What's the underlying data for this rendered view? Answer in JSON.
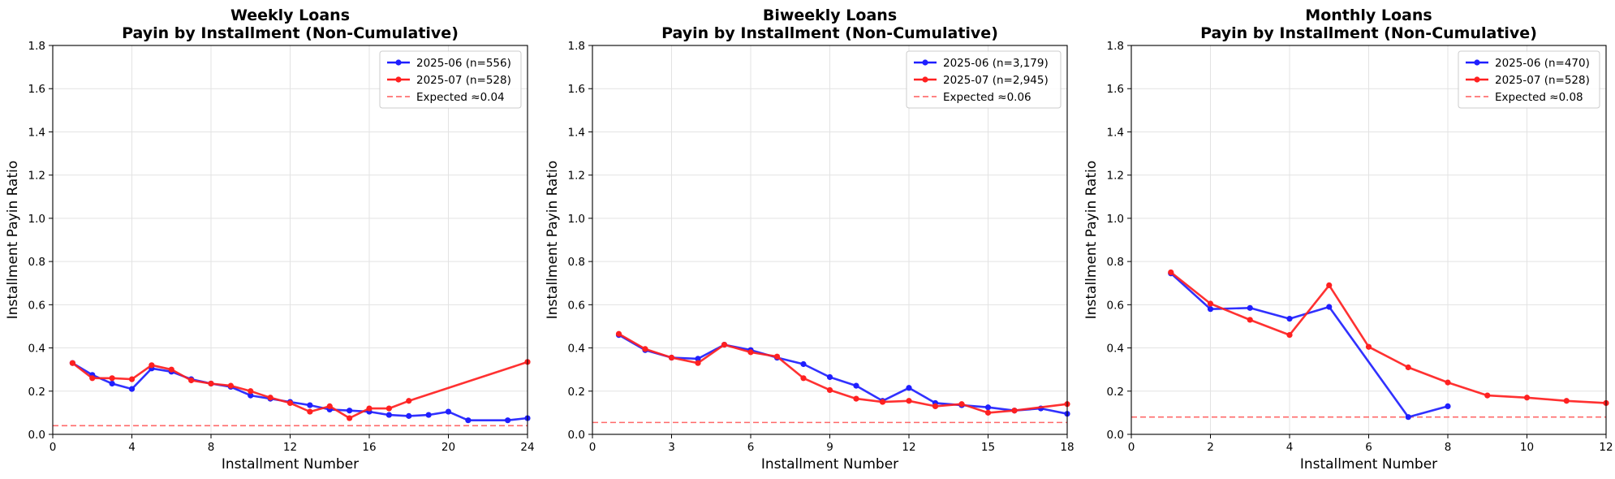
{
  "chart_data": [
    {
      "type": "line",
      "title": "Weekly Loans",
      "subtitle": "Payin by Installment (Non-Cumulative)",
      "xlabel": "Installment Number",
      "ylabel": "Installment Payin Ratio",
      "xlim": [
        0,
        24
      ],
      "ylim": [
        0,
        1.8
      ],
      "xticks": [
        "0",
        "4",
        "8",
        "12",
        "16",
        "20",
        "24"
      ],
      "yticks": [
        "0.0",
        "0.2",
        "0.4",
        "0.6",
        "0.8",
        "1.0",
        "1.2",
        "1.4",
        "1.6",
        "1.8"
      ],
      "grid": true,
      "legend_position": "top-right",
      "series": [
        {
          "name": "2025-06 (n=556)",
          "color": "#1f1fff",
          "x": [
            1,
            2,
            3,
            4,
            5,
            6,
            7,
            8,
            9,
            10,
            11,
            12,
            13,
            14,
            15,
            16,
            17,
            18,
            19,
            20,
            21,
            23,
            24
          ],
          "y": [
            0.33,
            0.275,
            0.235,
            0.21,
            0.305,
            0.29,
            0.255,
            0.235,
            0.22,
            0.18,
            0.165,
            0.15,
            0.135,
            0.115,
            0.11,
            0.105,
            0.09,
            0.085,
            0.09,
            0.105,
            0.065,
            0.065,
            0.075
          ]
        },
        {
          "name": "2025-07 (n=528)",
          "color": "#ff2020",
          "x": [
            1,
            2,
            3,
            4,
            5,
            6,
            7,
            8,
            9,
            10,
            11,
            12,
            13,
            14,
            15,
            16,
            17,
            18,
            24
          ],
          "y": [
            0.33,
            0.26,
            0.26,
            0.255,
            0.32,
            0.3,
            0.25,
            0.235,
            0.225,
            0.2,
            0.17,
            0.145,
            0.105,
            0.13,
            0.075,
            0.12,
            0.12,
            0.155,
            0.335
          ]
        }
      ],
      "expected": {
        "name": "Expected ≈0.04",
        "value": 0.04,
        "color": "#ff5a5a"
      }
    },
    {
      "type": "line",
      "title": "Biweekly Loans",
      "subtitle": "Payin by Installment (Non-Cumulative)",
      "xlabel": "Installment Number",
      "ylabel": "Installment Payin Ratio",
      "xlim": [
        0,
        18
      ],
      "ylim": [
        0,
        1.8
      ],
      "xticks": [
        "0",
        "3",
        "6",
        "9",
        "12",
        "15",
        "18"
      ],
      "yticks": [
        "0.0",
        "0.2",
        "0.4",
        "0.6",
        "0.8",
        "1.0",
        "1.2",
        "1.4",
        "1.6",
        "1.8"
      ],
      "grid": true,
      "legend_position": "top-right",
      "series": [
        {
          "name": "2025-06 (n=3,179)",
          "color": "#1f1fff",
          "x": [
            1,
            2,
            3,
            4,
            5,
            6,
            7,
            8,
            9,
            10,
            11,
            12,
            13,
            14,
            15,
            16,
            17,
            18
          ],
          "y": [
            0.46,
            0.39,
            0.355,
            0.35,
            0.415,
            0.39,
            0.355,
            0.325,
            0.265,
            0.225,
            0.155,
            0.215,
            0.145,
            0.135,
            0.125,
            0.11,
            0.12,
            0.095
          ]
        },
        {
          "name": "2025-07 (n=2,945)",
          "color": "#ff2020",
          "x": [
            1,
            2,
            3,
            4,
            5,
            6,
            7,
            8,
            9,
            10,
            11,
            12,
            13,
            14,
            15,
            16,
            18
          ],
          "y": [
            0.465,
            0.395,
            0.355,
            0.33,
            0.415,
            0.38,
            0.36,
            0.26,
            0.205,
            0.165,
            0.15,
            0.155,
            0.13,
            0.14,
            0.1,
            0.11,
            0.14
          ]
        }
      ],
      "expected": {
        "name": "Expected ≈0.06",
        "value": 0.055,
        "color": "#ff5a5a"
      }
    },
    {
      "type": "line",
      "title": "Monthly Loans",
      "subtitle": "Payin by Installment (Non-Cumulative)",
      "xlabel": "Installment Number",
      "ylabel": "Installment Payin Ratio",
      "xlim": [
        0,
        12
      ],
      "ylim": [
        0,
        1.8
      ],
      "xticks": [
        "0",
        "2",
        "4",
        "6",
        "8",
        "10",
        "12"
      ],
      "yticks": [
        "0.0",
        "0.2",
        "0.4",
        "0.6",
        "0.8",
        "1.0",
        "1.2",
        "1.4",
        "1.6",
        "1.8"
      ],
      "grid": true,
      "legend_position": "top-right",
      "series": [
        {
          "name": "2025-06 (n=470)",
          "color": "#1f1fff",
          "x": [
            1,
            2,
            3,
            4,
            5,
            7,
            8
          ],
          "y": [
            0.745,
            0.58,
            0.585,
            0.535,
            0.59,
            0.08,
            0.13
          ]
        },
        {
          "name": "2025-07 (n=528)",
          "color": "#ff2020",
          "x": [
            1,
            2,
            3,
            4,
            5,
            6,
            7,
            8,
            9,
            10,
            11,
            12
          ],
          "y": [
            0.75,
            0.605,
            0.53,
            0.46,
            0.69,
            0.405,
            0.31,
            0.24,
            0.18,
            0.17,
            0.155,
            0.145
          ]
        }
      ],
      "expected": {
        "name": "Expected ≈0.08",
        "value": 0.08,
        "color": "#ff5a5a"
      }
    }
  ]
}
